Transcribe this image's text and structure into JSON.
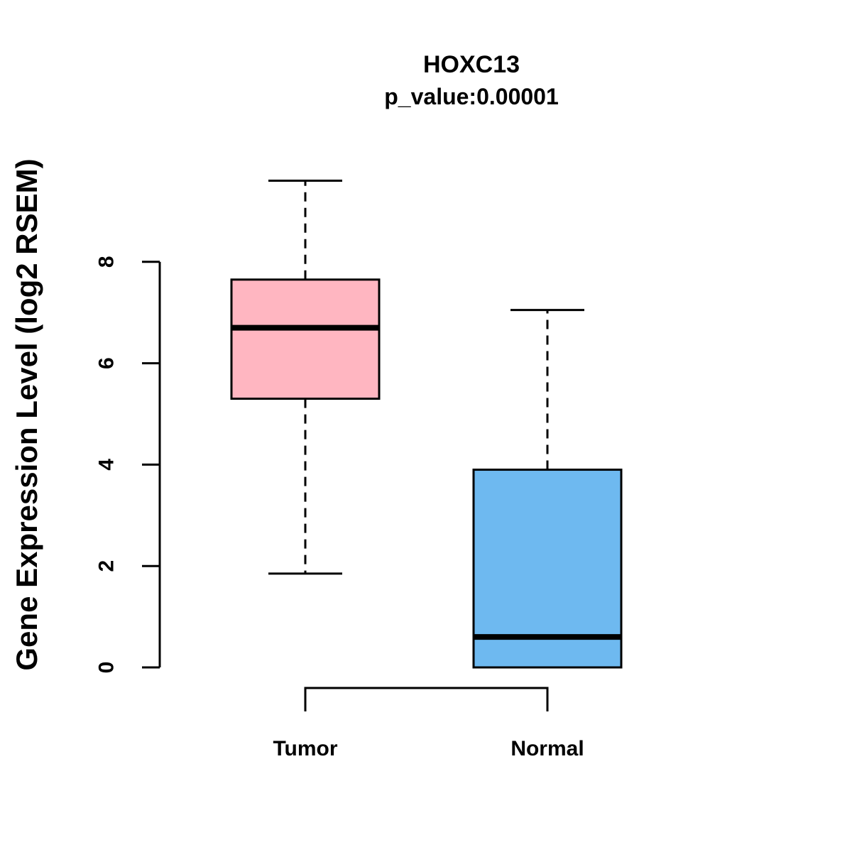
{
  "chart_data": {
    "type": "boxplot",
    "title": "HOXC13",
    "subtitle": "p_value:0.00001",
    "ylabel": "Gene Expression Level (log2 RSEM)",
    "xlabel": "",
    "yticks": [
      0,
      2,
      4,
      6,
      8
    ],
    "ylim": [
      0,
      9.7
    ],
    "grid": false,
    "legend": "none",
    "axis_color": "#000000",
    "groups": [
      {
        "label": "Tumor",
        "color": "#FFB6C1",
        "whisker_low": 1.85,
        "q1": 5.3,
        "median": 6.7,
        "q3": 7.65,
        "whisker_high": 9.6
      },
      {
        "label": "Normal",
        "color": "#6EB9F0",
        "whisker_low": 0,
        "q1": 0,
        "median": 0.6,
        "q3": 3.9,
        "whisker_high": 7.05
      }
    ],
    "comparison_bracket": true
  }
}
